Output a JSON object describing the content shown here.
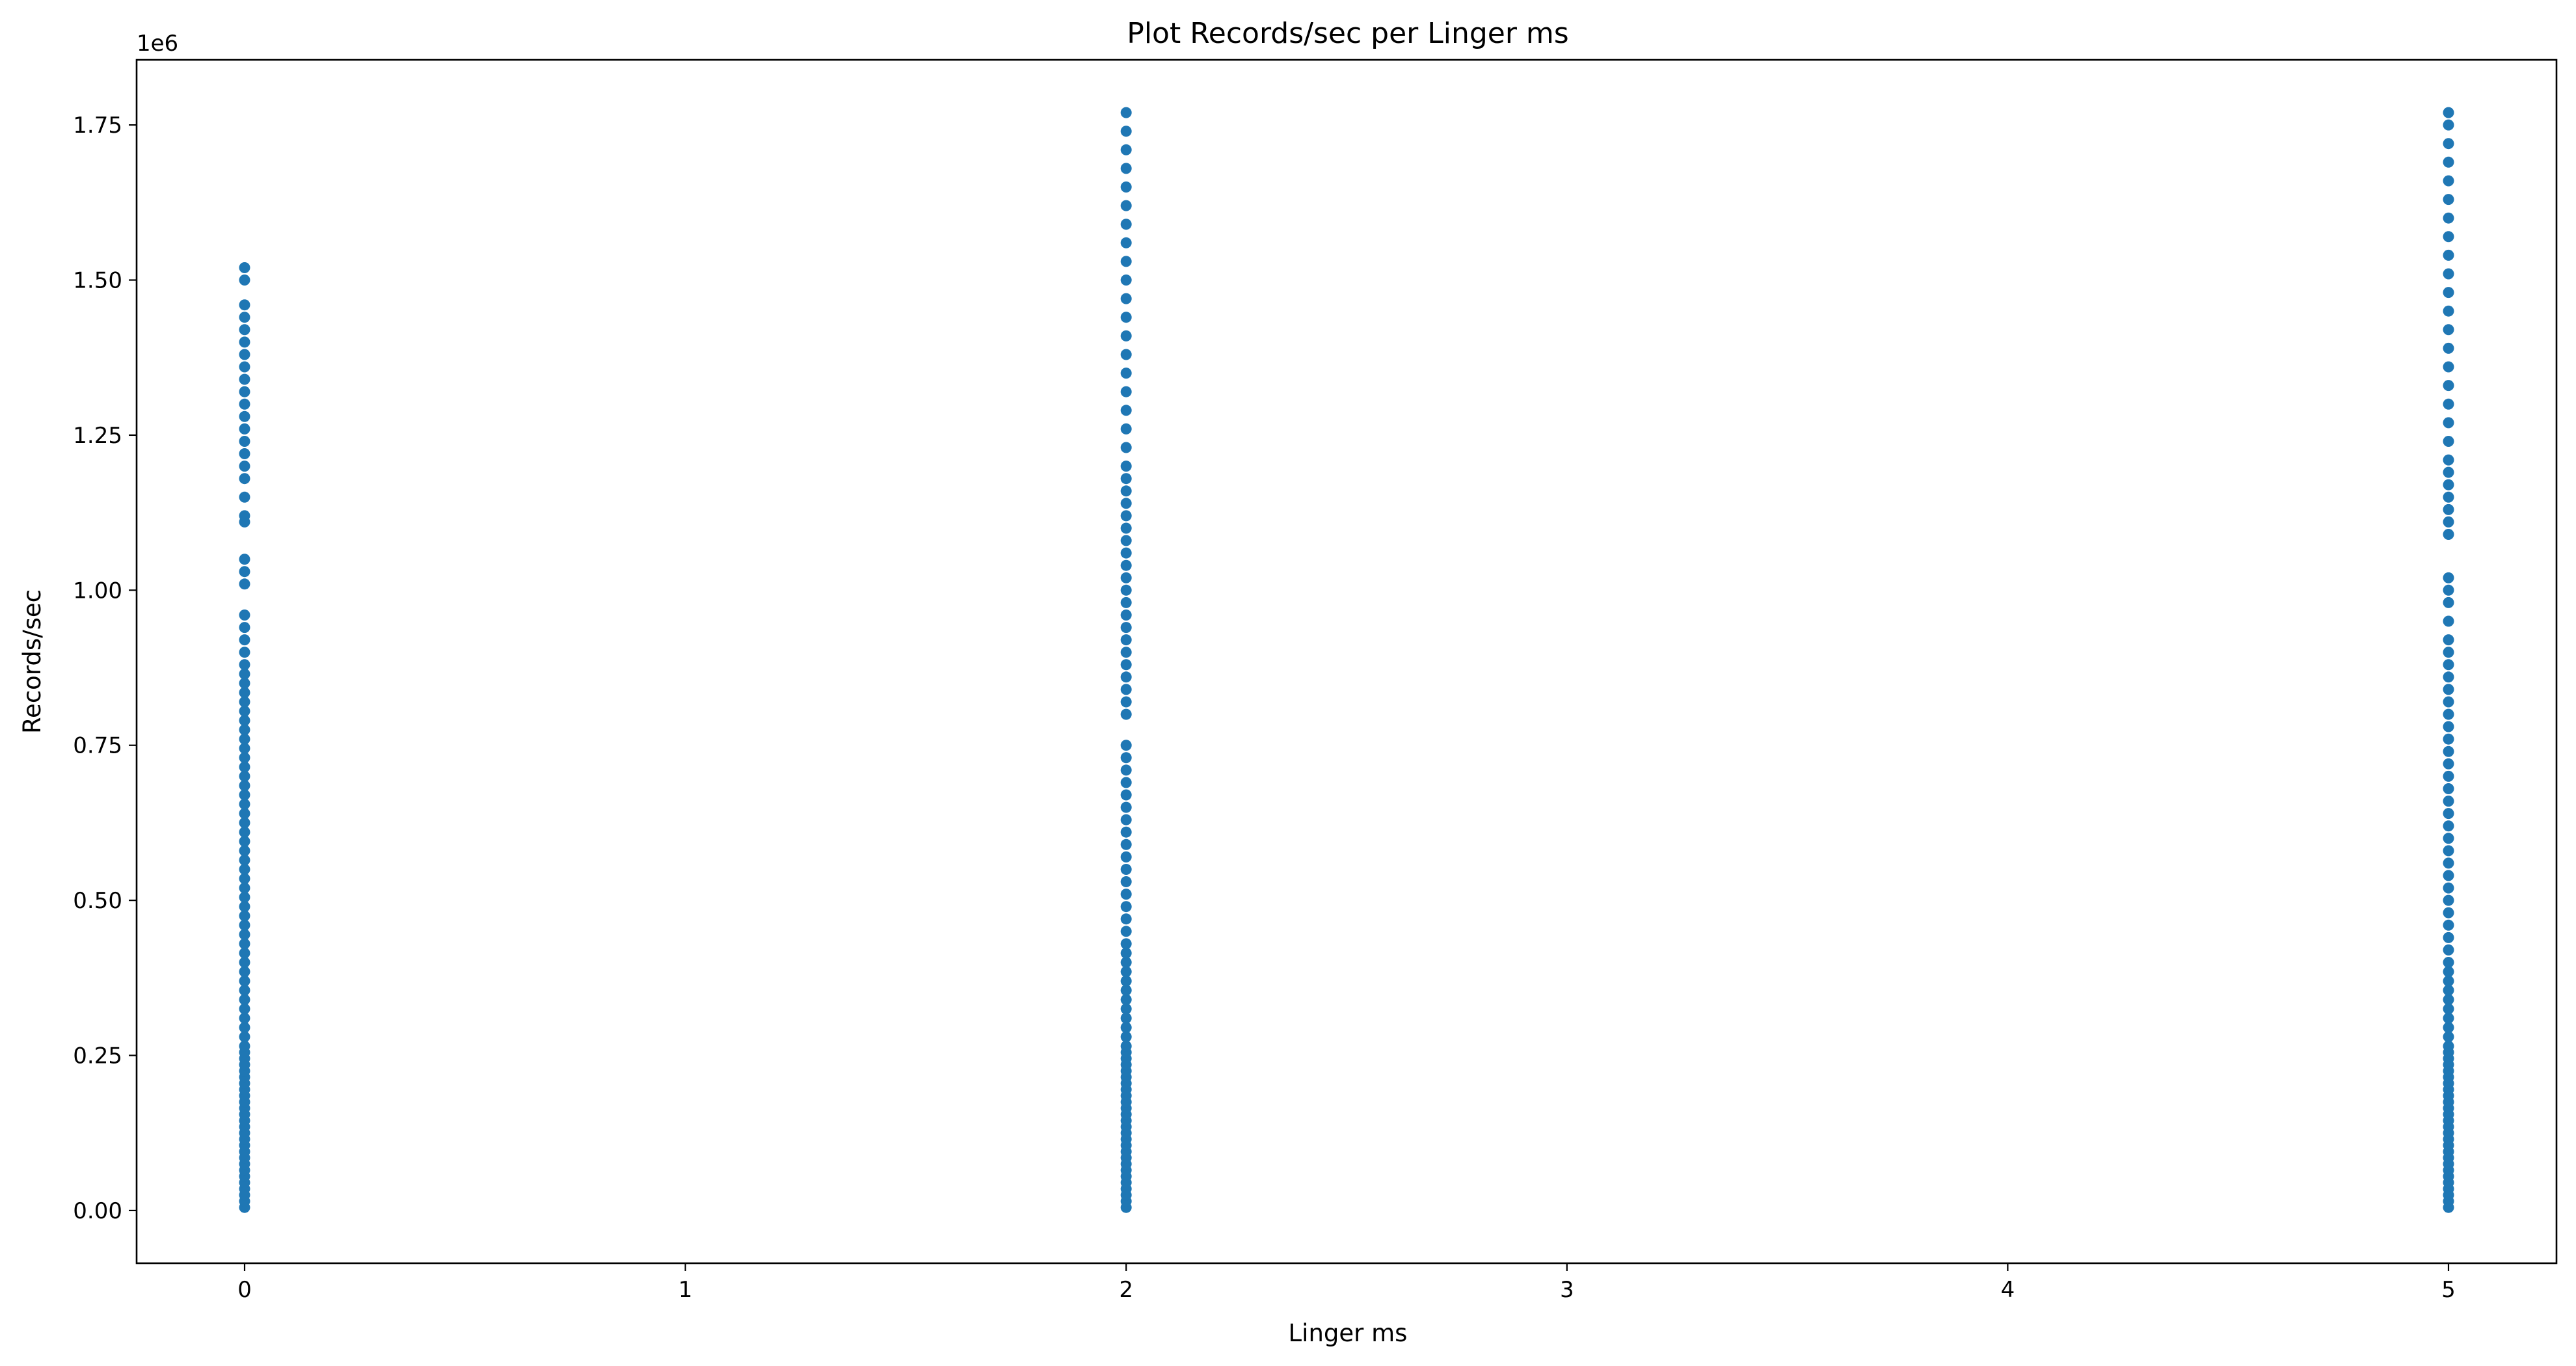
{
  "chart_data": {
    "type": "scatter",
    "title": "Plot Records/sec per Linger ms",
    "xlabel": "Linger ms",
    "ylabel": "Records/sec",
    "y_offset_label": "1e6",
    "xlim": [
      -0.245,
      5.245
    ],
    "ylim": [
      -85000,
      1855000
    ],
    "x_ticks": [
      0,
      1,
      2,
      3,
      4,
      5
    ],
    "x_tick_labels": [
      "0",
      "1",
      "2",
      "3",
      "4",
      "5"
    ],
    "y_ticks": [
      0,
      250000,
      500000,
      750000,
      1000000,
      1250000,
      1500000,
      1750000
    ],
    "y_tick_labels": [
      "0.00",
      "0.25",
      "0.50",
      "0.75",
      "1.00",
      "1.25",
      "1.50",
      "1.75"
    ],
    "grid": false,
    "marker_color": "#1f77b4",
    "series": [
      {
        "x": 0,
        "y": [
          5000,
          15000,
          25000,
          35000,
          45000,
          55000,
          65000,
          75000,
          85000,
          95000,
          105000,
          115000,
          125000,
          135000,
          145000,
          155000,
          165000,
          175000,
          185000,
          195000,
          205000,
          215000,
          225000,
          235000,
          245000,
          255000,
          265000,
          280000,
          295000,
          310000,
          325000,
          340000,
          355000,
          370000,
          385000,
          400000,
          415000,
          430000,
          445000,
          460000,
          475000,
          490000,
          505000,
          520000,
          535000,
          550000,
          565000,
          580000,
          595000,
          610000,
          625000,
          640000,
          655000,
          670000,
          685000,
          700000,
          715000,
          730000,
          745000,
          760000,
          775000,
          790000,
          805000,
          820000,
          835000,
          850000,
          865000,
          880000,
          900000,
          920000,
          940000,
          960000,
          1010000,
          1030000,
          1050000,
          1110000,
          1120000,
          1150000,
          1180000,
          1200000,
          1220000,
          1240000,
          1260000,
          1280000,
          1300000,
          1320000,
          1340000,
          1360000,
          1380000,
          1400000,
          1420000,
          1440000,
          1460000,
          1500000,
          1520000
        ]
      },
      {
        "x": 2,
        "y": [
          5000,
          15000,
          25000,
          35000,
          45000,
          55000,
          65000,
          75000,
          85000,
          95000,
          105000,
          115000,
          125000,
          135000,
          145000,
          155000,
          165000,
          175000,
          185000,
          195000,
          205000,
          215000,
          225000,
          235000,
          245000,
          255000,
          265000,
          280000,
          295000,
          310000,
          325000,
          340000,
          355000,
          370000,
          385000,
          400000,
          415000,
          430000,
          450000,
          470000,
          490000,
          510000,
          530000,
          550000,
          570000,
          590000,
          610000,
          630000,
          650000,
          670000,
          690000,
          710000,
          730000,
          750000,
          800000,
          820000,
          840000,
          860000,
          880000,
          900000,
          920000,
          940000,
          960000,
          980000,
          1000000,
          1020000,
          1040000,
          1060000,
          1080000,
          1100000,
          1120000,
          1140000,
          1160000,
          1180000,
          1200000,
          1230000,
          1260000,
          1290000,
          1320000,
          1350000,
          1380000,
          1410000,
          1440000,
          1470000,
          1500000,
          1530000,
          1560000,
          1590000,
          1620000,
          1650000,
          1680000,
          1710000,
          1740000,
          1770000
        ]
      },
      {
        "x": 5,
        "y": [
          5000,
          15000,
          25000,
          35000,
          45000,
          55000,
          65000,
          75000,
          85000,
          95000,
          105000,
          115000,
          125000,
          135000,
          145000,
          155000,
          165000,
          175000,
          185000,
          195000,
          205000,
          215000,
          225000,
          235000,
          245000,
          255000,
          265000,
          280000,
          295000,
          310000,
          325000,
          340000,
          355000,
          370000,
          385000,
          400000,
          420000,
          440000,
          460000,
          480000,
          500000,
          520000,
          540000,
          560000,
          580000,
          600000,
          620000,
          640000,
          660000,
          680000,
          700000,
          720000,
          740000,
          760000,
          780000,
          800000,
          820000,
          840000,
          860000,
          880000,
          900000,
          920000,
          950000,
          980000,
          1000000,
          1020000,
          1090000,
          1110000,
          1130000,
          1150000,
          1170000,
          1190000,
          1210000,
          1240000,
          1270000,
          1300000,
          1330000,
          1360000,
          1390000,
          1420000,
          1450000,
          1480000,
          1510000,
          1540000,
          1570000,
          1600000,
          1630000,
          1660000,
          1690000,
          1720000,
          1750000,
          1770000
        ]
      }
    ]
  }
}
